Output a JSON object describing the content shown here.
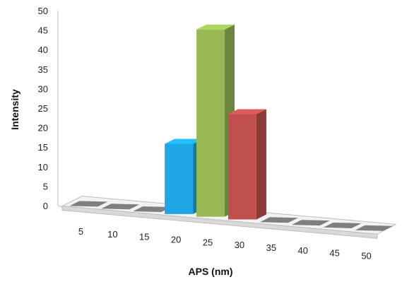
{
  "chart_data": {
    "type": "bar",
    "title": "",
    "xlabel": "APS (nm)",
    "ylabel": "Intensity",
    "categories": [
      "5",
      "10",
      "15",
      "20",
      "25",
      "30",
      "35",
      "40",
      "45",
      "50"
    ],
    "values": [
      0,
      0,
      0,
      18,
      48,
      27,
      0,
      0,
      0,
      0
    ],
    "ylim": [
      0,
      50
    ],
    "yticks": [
      "0",
      "5",
      "10",
      "15",
      "20",
      "25",
      "30",
      "35",
      "40",
      "45",
      "50"
    ],
    "style": "3d-column",
    "grid": false,
    "legend": "none",
    "bar_colors": [
      "#7f7f7f",
      "#7f7f7f",
      "#7f7f7f",
      "#1fa6e6",
      "#98b954",
      "#c0504d",
      "#7f7f7f",
      "#7f7f7f",
      "#7f7f7f",
      "#7f7f7f"
    ]
  }
}
